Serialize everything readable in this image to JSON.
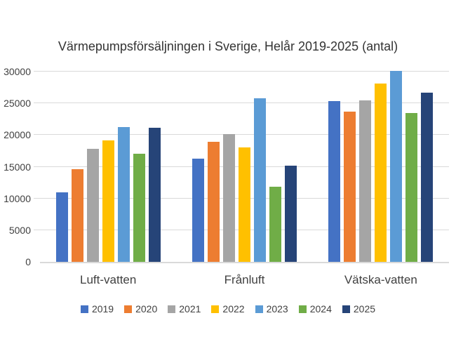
{
  "chart_data": {
    "type": "bar",
    "title": "Värmepumpsförsäljningen i Sverige, Helår 2019-2025 (antal)",
    "categories": [
      "Luft-vatten",
      "Frånluft",
      "Vätska-vatten"
    ],
    "series": [
      {
        "name": "2019",
        "color": "#4472C4",
        "values": [
          11000,
          16300,
          25300
        ]
      },
      {
        "name": "2020",
        "color": "#ED7D31",
        "values": [
          14600,
          18900,
          23700
        ]
      },
      {
        "name": "2021",
        "color": "#A5A5A5",
        "values": [
          17800,
          20100,
          25500
        ]
      },
      {
        "name": "2022",
        "color": "#FFC000",
        "values": [
          19100,
          18000,
          28100
        ]
      },
      {
        "name": "2023",
        "color": "#5B9BD5",
        "values": [
          21300,
          25800,
          30100
        ]
      },
      {
        "name": "2024",
        "color": "#70AD47",
        "values": [
          17000,
          11800,
          23500
        ]
      },
      {
        "name": "2025",
        "color": "#264478",
        "values": [
          21200,
          15200,
          26700
        ]
      }
    ],
    "xlabel": "",
    "ylabel": "",
    "ylim": [
      0,
      30000
    ],
    "yticks": [
      0,
      5000,
      10000,
      15000,
      20000,
      25000,
      30000
    ],
    "grid": true,
    "legend_position": "bottom"
  },
  "style": {
    "background": "#FFFFFF",
    "gridline_color": "#D9D9D9",
    "axis_line_color": "#D9D9D9",
    "label_color": "#404040",
    "title_color": "#333333"
  }
}
